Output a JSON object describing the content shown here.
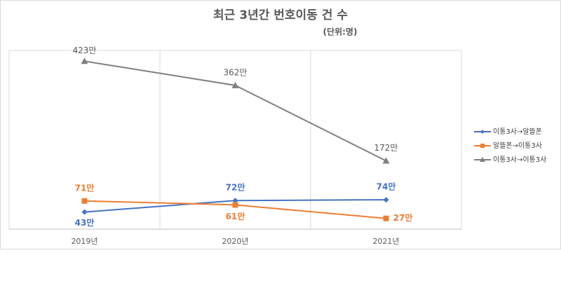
{
  "chart_data": {
    "type": "line",
    "title": "최근 3년간 번호이동 건 수",
    "subtitle": "(단위:명)",
    "categories": [
      "2019년",
      "2020년",
      "2021년"
    ],
    "series": [
      {
        "name": "이통3사→알뜰폰",
        "color": "#4472c4",
        "marker": "diamond",
        "values": [
          43,
          72,
          74
        ],
        "value_labels": [
          "43만",
          "72만",
          "74만"
        ]
      },
      {
        "name": "알뜰폰→이통3사",
        "color": "#ed7d31",
        "marker": "square",
        "values": [
          71,
          61,
          27
        ],
        "value_labels": [
          "71만",
          "61만",
          "27만"
        ]
      },
      {
        "name": "이통3사→이통3사",
        "color": "#7f7f7f",
        "marker": "triangle",
        "values": [
          423,
          362,
          172
        ],
        "value_labels": [
          "423만",
          "362만",
          "172만"
        ]
      }
    ],
    "ylim": [
      0,
      450
    ],
    "grid": true,
    "legend": "right"
  }
}
